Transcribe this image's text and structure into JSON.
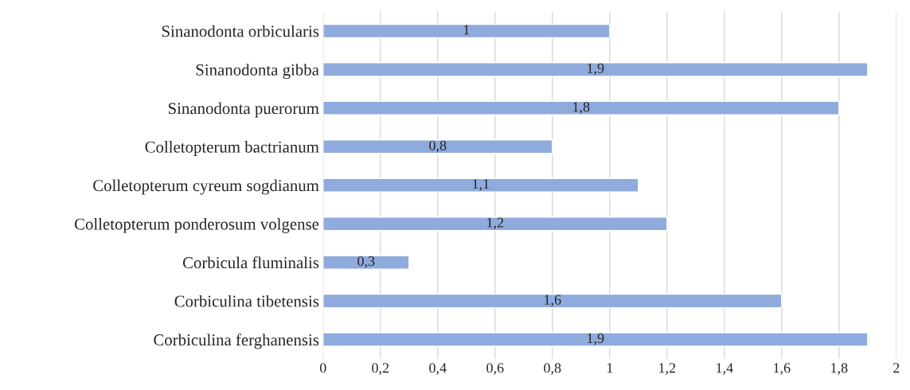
{
  "chart_data": {
    "type": "bar",
    "orientation": "horizontal",
    "categories": [
      "Sinanodonta orbicularis",
      "Sinanodonta gibba",
      "Sinanodonta puerorum",
      "Colletopterum bactrianum",
      "Colletopterum cyreum sogdianum",
      "Colletopterum ponderosum volgense",
      "Corbicula fluminalis",
      "Corbiculina tibetensis",
      "Corbiculina ferghanensis"
    ],
    "values": [
      1,
      1.9,
      1.8,
      0.8,
      1.1,
      1.2,
      0.3,
      1.6,
      1.9
    ],
    "value_labels": [
      "1",
      "1,9",
      "1,8",
      "0,8",
      "1,1",
      "1,2",
      "0,3",
      "1,6",
      "1,9"
    ],
    "color": "#8faadc",
    "xlim": [
      0,
      2
    ],
    "xticks": [
      0,
      {
        "value": 0.2,
        "label": "0,2"
      },
      {
        "value": 0.4,
        "label": "0,4"
      },
      {
        "value": 0.6,
        "label": "0,6"
      },
      {
        "value": 0.8,
        "label": "0,8"
      },
      1,
      {
        "value": 1.2,
        "label": "1,2"
      },
      {
        "value": 1.4,
        "label": "1,4"
      },
      {
        "value": 1.6,
        "label": "1,6"
      },
      {
        "value": 1.8,
        "label": "1,8"
      },
      2
    ],
    "grid": "x"
  }
}
